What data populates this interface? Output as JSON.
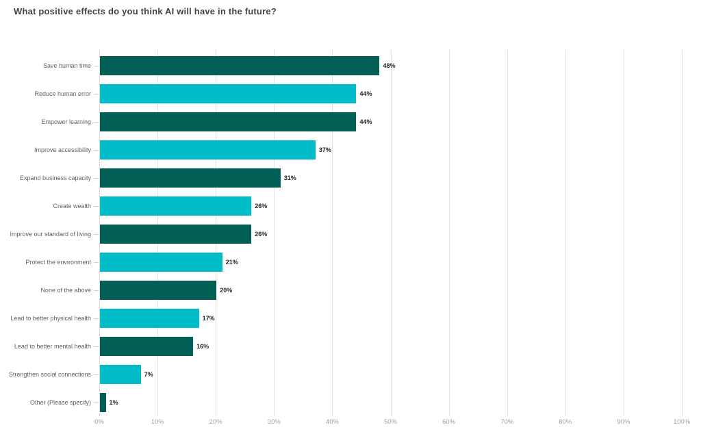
{
  "title": "What positive effects do you think AI will have in the future?",
  "colors": {
    "background": "#FFFFFF",
    "title_text": "#3B4750",
    "category_text": "#5E6266",
    "value_text": "#222222",
    "grid_line": "#E3E3E3",
    "tick_text": "#A3A3A3",
    "bar_dark_teal": "#015F56",
    "bar_cyan": "#00BCC9"
  },
  "chart_data": {
    "type": "bar",
    "orientation": "horizontal",
    "title": "What positive effects do you think AI will have in the future?",
    "categories": [
      "Save human time",
      "Reduce human error",
      "Empower learning",
      "Improve accessibility",
      "Expand business capacity",
      "Create wealth",
      "Improve our standard of living",
      "Protect the environment",
      "None of the above",
      "Lead to better physical health",
      "Lead to better mental health",
      "Strengthen social connections",
      "Other (Please specify)"
    ],
    "values": [
      48,
      44,
      44,
      37,
      31,
      26,
      26,
      21,
      20,
      17,
      16,
      7,
      1
    ],
    "value_labels": [
      "48%",
      "44%",
      "44%",
      "37%",
      "31%",
      "26%",
      "26%",
      "21%",
      "20%",
      "17%",
      "16%",
      "7%",
      "1%"
    ],
    "bar_colors_alternating": [
      "#015F56",
      "#00BCC9"
    ],
    "x_ticks": [
      "0%",
      "10%",
      "20%",
      "30%",
      "40%",
      "50%",
      "60%",
      "70%",
      "80%",
      "90%",
      "100%"
    ],
    "xlabel": "",
    "ylabel": "",
    "xlim": [
      0,
      100
    ],
    "grid": "vertical-only",
    "legend": "none",
    "data_labels": "outside-end"
  }
}
